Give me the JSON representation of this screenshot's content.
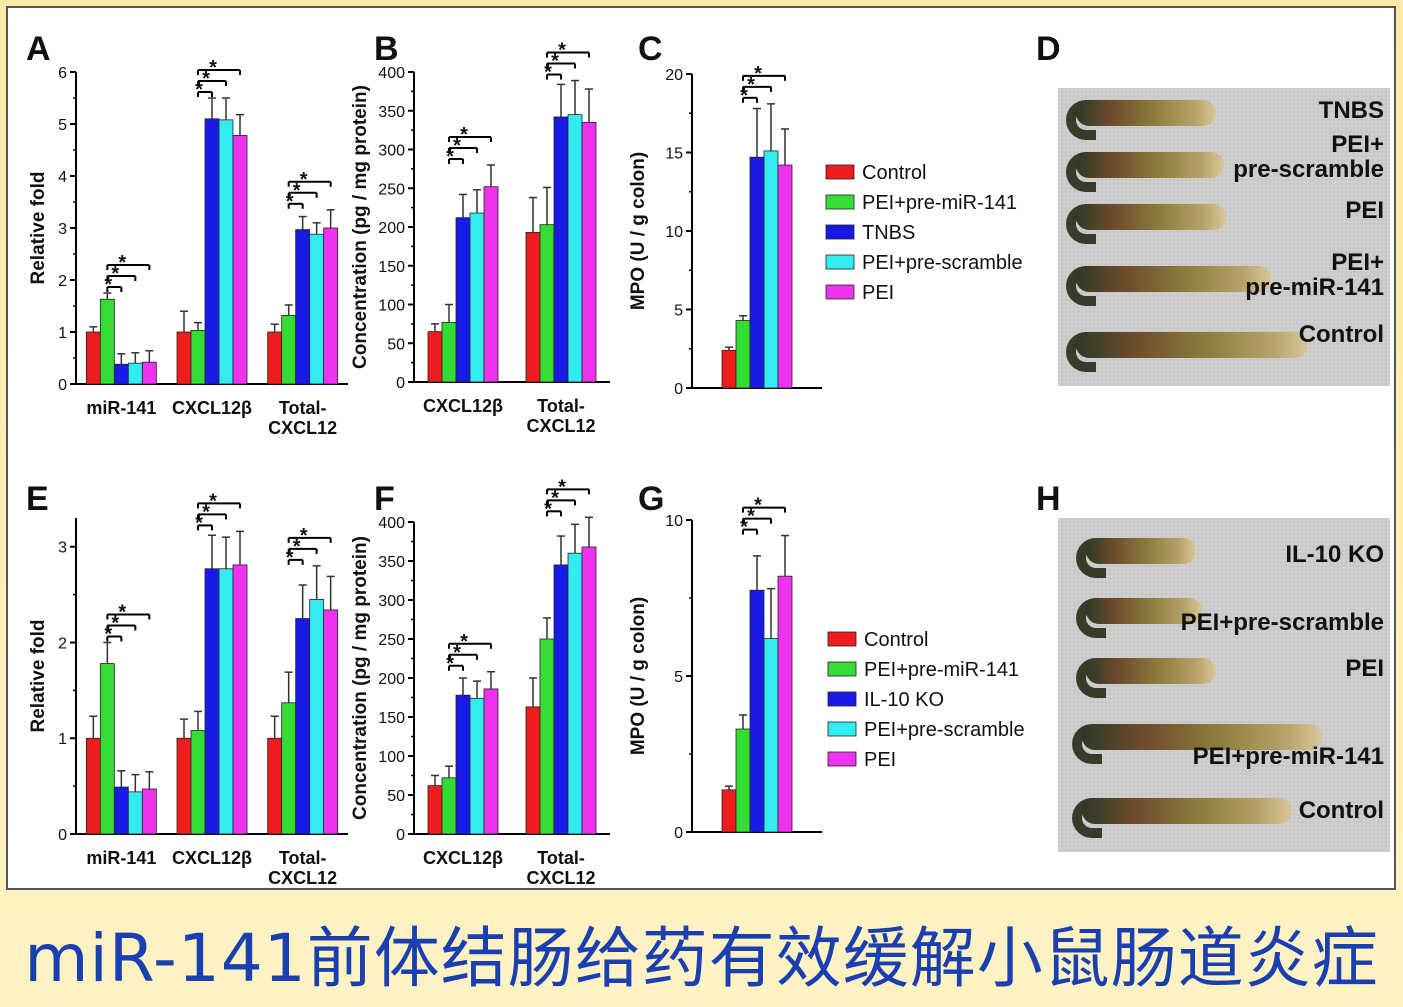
{
  "banner": {
    "text": "miR-141前体结肠给药有效缓解小鼠肠道炎症"
  },
  "colors": {
    "Control": "#ee1c1c",
    "PEI+pre-miR-141": "#33dd33",
    "TNBS": "#1a1ae6",
    "IL-10 KO": "#1a1ae6",
    "PEI+pre-scramble": "#33ecf2",
    "PEI": "#ee33ee"
  },
  "legends": {
    "top": [
      "Control",
      "PEI+pre-miR-141",
      "TNBS",
      "PEI+pre-scramble",
      "PEI"
    ],
    "bottom": [
      "Control",
      "PEI+pre-miR-141",
      "IL-10 KO",
      "PEI+pre-scramble",
      "PEI"
    ]
  },
  "photos": {
    "D": {
      "letter": "D",
      "labels": [
        "TNBS",
        "PEI+\npre-scramble",
        "PEI",
        "PEI+\npre-miR-141",
        "Control"
      ]
    },
    "H": {
      "letter": "H",
      "labels": [
        "IL-10 KO",
        "PEI+pre-scramble",
        "PEI",
        "PEI+pre-miR-141",
        "Control"
      ]
    }
  },
  "chart_data": [
    {
      "panel": "A",
      "type": "bar",
      "ylabel": "Relative fold",
      "ylim": [
        0,
        6
      ],
      "yticks": [
        0,
        1,
        2,
        3,
        4,
        5,
        6
      ],
      "categories": [
        "miR-141",
        "CXCL12β",
        "Total-\nCXCL12"
      ],
      "series": [
        {
          "name": "Control",
          "values": [
            1.0,
            1.0,
            1.0
          ],
          "errors": [
            0.1,
            0.4,
            0.15
          ]
        },
        {
          "name": "PEI+pre-miR-141",
          "values": [
            1.63,
            1.03,
            1.32
          ],
          "errors": [
            0.12,
            0.15,
            0.2
          ]
        },
        {
          "name": "TNBS",
          "values": [
            0.38,
            5.1,
            2.97
          ],
          "errors": [
            0.2,
            0.4,
            0.25
          ]
        },
        {
          "name": "PEI+pre-scramble",
          "values": [
            0.4,
            5.08,
            2.88
          ],
          "errors": [
            0.2,
            0.42,
            0.22
          ]
        },
        {
          "name": "PEI",
          "values": [
            0.42,
            4.78,
            3.0
          ],
          "errors": [
            0.22,
            0.4,
            0.35
          ]
        }
      ],
      "significance": "*"
    },
    {
      "panel": "B",
      "type": "bar",
      "ylabel": "Concentration (pg / mg protein)",
      "ylim": [
        0,
        400
      ],
      "yticks": [
        0,
        50,
        100,
        150,
        200,
        250,
        300,
        350,
        400
      ],
      "categories": [
        "CXCL12β",
        "Total-\nCXCL12"
      ],
      "series": [
        {
          "name": "Control",
          "values": [
            65,
            193
          ],
          "errors": [
            10,
            45
          ]
        },
        {
          "name": "PEI+pre-miR-141",
          "values": [
            77,
            203
          ],
          "errors": [
            23,
            48
          ]
        },
        {
          "name": "TNBS",
          "values": [
            212,
            342
          ],
          "errors": [
            30,
            42
          ]
        },
        {
          "name": "PEI+pre-scramble",
          "values": [
            218,
            345
          ],
          "errors": [
            30,
            44
          ]
        },
        {
          "name": "PEI",
          "values": [
            252,
            335
          ],
          "errors": [
            28,
            43
          ]
        }
      ],
      "significance": "*"
    },
    {
      "panel": "C",
      "type": "bar",
      "ylabel": "MPO (U / g colon)",
      "ylim": [
        0,
        20
      ],
      "yticks": [
        0,
        5,
        10,
        15,
        20
      ],
      "categories": [
        ""
      ],
      "series": [
        {
          "name": "Control",
          "values": [
            2.4
          ],
          "errors": [
            0.2
          ]
        },
        {
          "name": "PEI+pre-miR-141",
          "values": [
            4.3
          ],
          "errors": [
            0.3
          ]
        },
        {
          "name": "TNBS",
          "values": [
            14.7
          ],
          "errors": [
            3.1
          ]
        },
        {
          "name": "PEI+pre-scramble",
          "values": [
            15.1
          ],
          "errors": [
            3.0
          ]
        },
        {
          "name": "PEI",
          "values": [
            14.2
          ],
          "errors": [
            2.3
          ]
        }
      ],
      "significance": "*"
    },
    {
      "panel": "E",
      "type": "bar",
      "ylabel": "Relative fold",
      "ylim": [
        0,
        3.3
      ],
      "yticks": [
        0,
        1,
        2,
        3
      ],
      "categories": [
        "miR-141",
        "CXCL12β",
        "Total-\nCXCL12"
      ],
      "series": [
        {
          "name": "Control",
          "values": [
            1.0,
            1.0,
            1.0
          ],
          "errors": [
            0.23,
            0.2,
            0.23
          ]
        },
        {
          "name": "PEI+pre-miR-141",
          "values": [
            1.78,
            1.08,
            1.37
          ],
          "errors": [
            0.22,
            0.2,
            0.32
          ]
        },
        {
          "name": "IL-10 KO",
          "values": [
            0.49,
            2.77,
            2.25
          ],
          "errors": [
            0.17,
            0.35,
            0.35
          ]
        },
        {
          "name": "PEI+pre-scramble",
          "values": [
            0.44,
            2.77,
            2.45
          ],
          "errors": [
            0.18,
            0.33,
            0.35
          ]
        },
        {
          "name": "PEI",
          "values": [
            0.47,
            2.81,
            2.34
          ],
          "errors": [
            0.18,
            0.35,
            0.35
          ]
        }
      ],
      "significance": "*"
    },
    {
      "panel": "F",
      "type": "bar",
      "ylabel": "Concentration (pg / mg protein)",
      "ylim": [
        0,
        400
      ],
      "yticks": [
        0,
        50,
        100,
        150,
        200,
        250,
        300,
        350,
        400
      ],
      "categories": [
        "CXCL12β",
        "Total-\nCXCL12"
      ],
      "series": [
        {
          "name": "Control",
          "values": [
            62,
            163
          ],
          "errors": [
            13,
            37
          ]
        },
        {
          "name": "PEI+pre-miR-141",
          "values": [
            72,
            250
          ],
          "errors": [
            15,
            27
          ]
        },
        {
          "name": "IL-10 KO",
          "values": [
            178,
            345
          ],
          "errors": [
            22,
            37
          ]
        },
        {
          "name": "PEI+pre-scramble",
          "values": [
            174,
            360
          ],
          "errors": [
            22,
            37
          ]
        },
        {
          "name": "PEI",
          "values": [
            186,
            368
          ],
          "errors": [
            22,
            38
          ]
        }
      ],
      "significance": "*"
    },
    {
      "panel": "G",
      "type": "bar",
      "ylabel": "MPO (U / g colon)",
      "ylim": [
        0,
        10
      ],
      "yticks": [
        0,
        5,
        10
      ],
      "categories": [
        ""
      ],
      "series": [
        {
          "name": "Control",
          "values": [
            1.35
          ],
          "errors": [
            0.12
          ]
        },
        {
          "name": "PEI+pre-miR-141",
          "values": [
            3.3
          ],
          "errors": [
            0.45
          ]
        },
        {
          "name": "IL-10 KO",
          "values": [
            7.75
          ],
          "errors": [
            1.1
          ]
        },
        {
          "name": "PEI+pre-scramble",
          "values": [
            6.2
          ],
          "errors": [
            1.6
          ]
        },
        {
          "name": "PEI",
          "values": [
            8.2
          ],
          "errors": [
            1.3
          ]
        }
      ],
      "significance": "*"
    }
  ]
}
